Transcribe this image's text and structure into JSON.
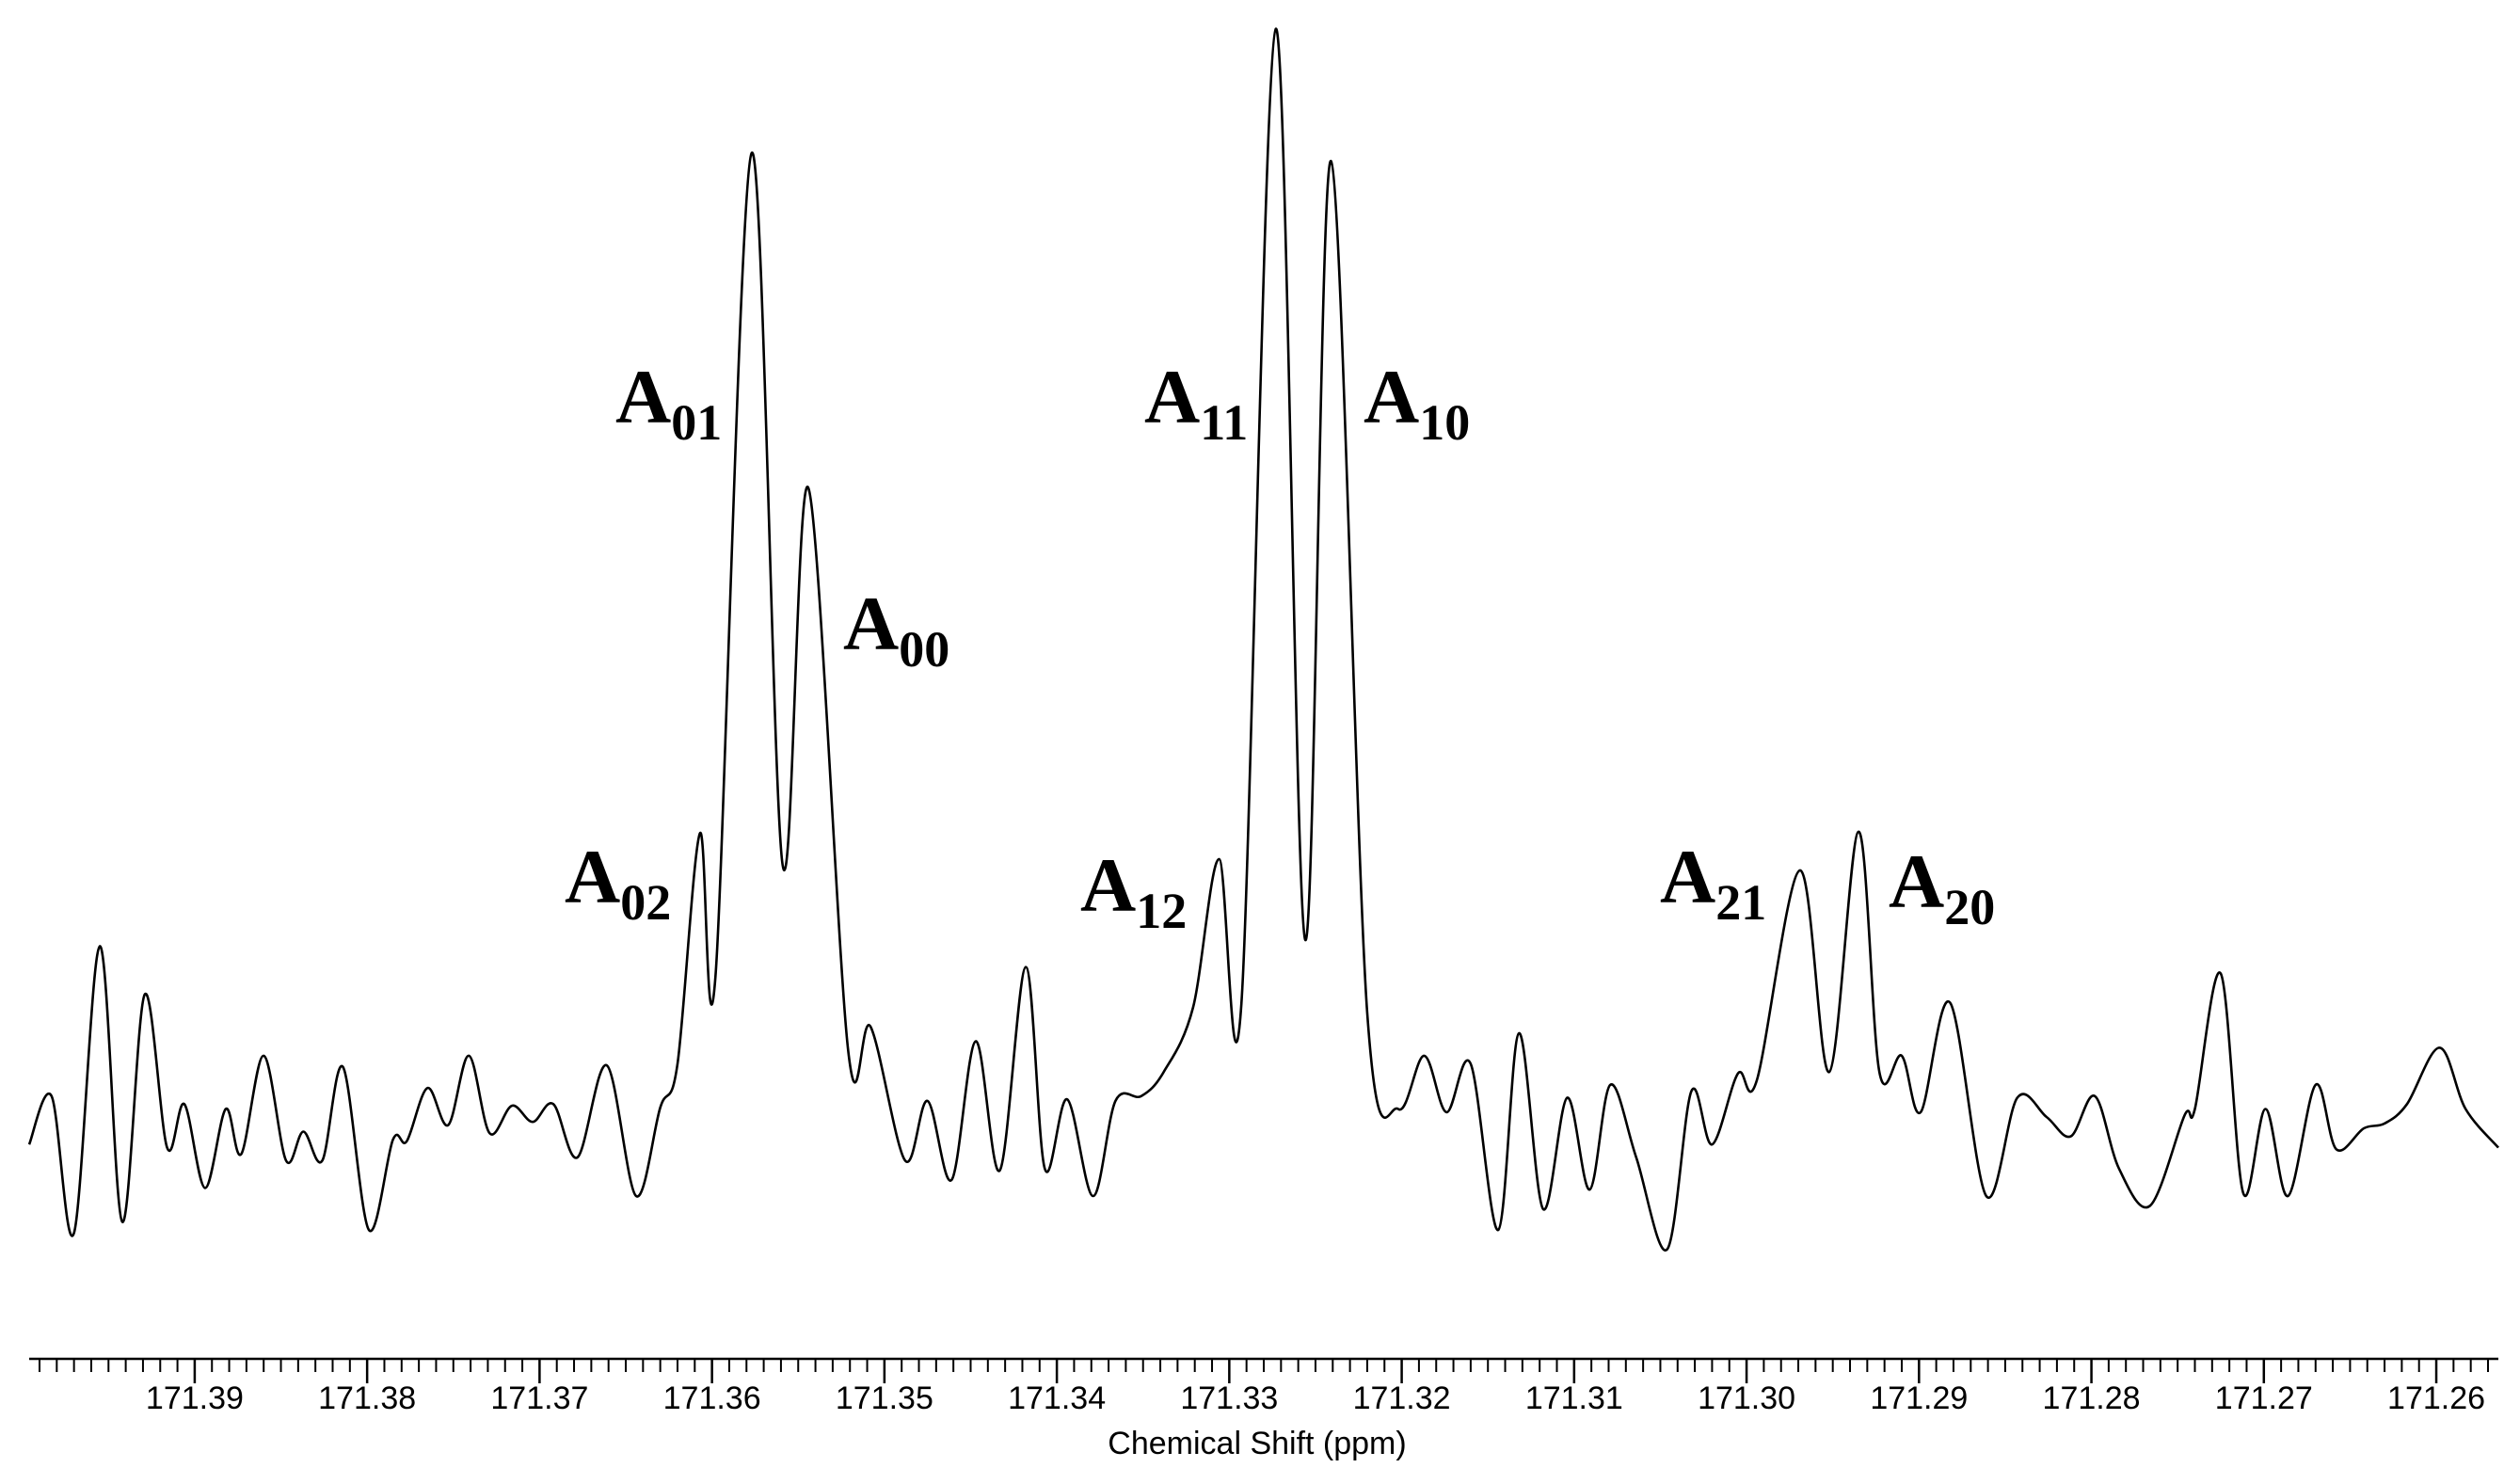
{
  "chart_data": {
    "type": "line",
    "xlabel": "Chemical Shift (ppm)",
    "color": "#000000",
    "xlim": [
      171.3996,
      171.2564
    ],
    "ylim": [
      0,
      833
    ],
    "xticks": [
      171.39,
      171.38,
      171.37,
      171.36,
      171.35,
      171.34,
      171.33,
      171.32,
      171.31,
      {
        "value": 171.3,
        "label": "171.30"
      },
      171.29,
      171.28,
      171.27,
      171.26
    ],
    "xminorticks": [
      171.399,
      171.398,
      171.397,
      171.396,
      171.395,
      171.394,
      171.393,
      171.392,
      171.391,
      171.389,
      171.388,
      171.387,
      171.386,
      171.385,
      171.384,
      171.383,
      171.382,
      171.381,
      171.379,
      171.378,
      171.377,
      171.376,
      171.375,
      171.374,
      171.373,
      171.372,
      171.371,
      171.369,
      171.368,
      171.367,
      171.366,
      171.365,
      171.364,
      171.363,
      171.362,
      171.361,
      171.359,
      171.358,
      171.357,
      171.356,
      171.355,
      171.354,
      171.353,
      171.352,
      171.351,
      171.349,
      171.348,
      171.347,
      171.346,
      171.345,
      171.344,
      171.343,
      171.342,
      171.341,
      171.339,
      171.338,
      171.337,
      171.336,
      171.335,
      171.334,
      171.333,
      171.332,
      171.331,
      171.329,
      171.328,
      171.327,
      171.326,
      171.325,
      171.324,
      171.323,
      171.322,
      171.321,
      171.319,
      171.318,
      171.317,
      171.316,
      171.315,
      171.314,
      171.313,
      171.312,
      171.311,
      171.309,
      171.308,
      171.307,
      171.306,
      171.305,
      171.304,
      171.303,
      171.302,
      171.301,
      171.299,
      171.298,
      171.297,
      171.296,
      171.295,
      171.294,
      171.293,
      171.292,
      171.291,
      171.289,
      171.288,
      171.287,
      171.286,
      171.285,
      171.284,
      171.283,
      171.282,
      171.281,
      171.279,
      171.278,
      171.277,
      171.276,
      171.275,
      171.274,
      171.273,
      171.272,
      171.271,
      171.269,
      171.268,
      171.267,
      171.266,
      171.265,
      171.264,
      171.263,
      171.262,
      171.261,
      171.259,
      171.258,
      171.257
    ],
    "x": [
      171.3996,
      171.3983,
      171.397,
      171.3955,
      171.3942,
      171.3929,
      171.3916,
      171.3906,
      171.3894,
      171.3882,
      171.3873,
      171.386,
      171.3847,
      171.3837,
      171.3826,
      171.3814,
      171.3799,
      171.3785,
      171.3777,
      171.3765,
      171.3753,
      171.3741,
      171.3729,
      171.3716,
      171.3704,
      171.3692,
      171.3678,
      171.3661,
      171.3644,
      171.363,
      171.362,
      171.3607,
      171.3598,
      171.3577,
      171.3559,
      171.3544,
      171.3521,
      171.3508,
      171.3488,
      171.3475,
      171.3461,
      171.3447,
      171.3433,
      171.3418,
      171.3407,
      171.3394,
      171.3379,
      171.3366,
      171.3351,
      171.3338,
      171.3321,
      171.3306,
      171.3293,
      171.3273,
      171.3256,
      171.3241,
      171.322,
      171.3202,
      171.3187,
      171.3174,
      171.316,
      171.3144,
      171.3132,
      171.3118,
      171.3104,
      171.3091,
      171.3079,
      171.3064,
      171.3046,
      171.3032,
      171.302,
      171.3005,
      171.2994,
      171.2969,
      171.2952,
      171.2935,
      171.2923,
      171.291,
      171.2899,
      171.2882,
      171.2861,
      171.2843,
      171.2826,
      171.2812,
      171.2798,
      171.2784,
      171.2766,
      171.2746,
      171.274,
      171.2725,
      171.2712,
      171.2699,
      171.2686,
      171.267,
      171.2658,
      171.2642,
      171.263,
      171.2617,
      171.2598,
      171.2583,
      171.2564
    ],
    "values": [
      133,
      163,
      78,
      256,
      85,
      226,
      131,
      158,
      106,
      155,
      127,
      188,
      123,
      141,
      123,
      181,
      80,
      136,
      135,
      168,
      145,
      188,
      140,
      157,
      147,
      158,
      125,
      182,
      101,
      156,
      183,
      326,
      237,
      748,
      306,
      540,
      191,
      206,
      123,
      160,
      111,
      197,
      117,
      243,
      118,
      161,
      101,
      160,
      163,
      178,
      218,
      310,
      220,
      825,
      260,
      743,
      215,
      155,
      188,
      153,
      183,
      80,
      202,
      93,
      162,
      105,
      170,
      125,
      68,
      166,
      133,
      177,
      173,
      303,
      178,
      327,
      178,
      188,
      153,
      221,
      101,
      162,
      150,
      138,
      163,
      118,
      95,
      151,
      155,
      239,
      103,
      155,
      101,
      170,
      130,
      143,
      146,
      158,
      193,
      155,
      131
    ],
    "annotations": [
      {
        "text": "A",
        "subscript": "01"
      },
      {
        "text": "A",
        "subscript": "00"
      },
      {
        "text": "A",
        "subscript": "02"
      },
      {
        "text": "A",
        "subscript": "11"
      },
      {
        "text": "A",
        "subscript": "10"
      },
      {
        "text": "A",
        "subscript": "12"
      },
      {
        "text": "A",
        "subscript": "21"
      },
      {
        "text": "A",
        "subscript": "20"
      }
    ]
  }
}
